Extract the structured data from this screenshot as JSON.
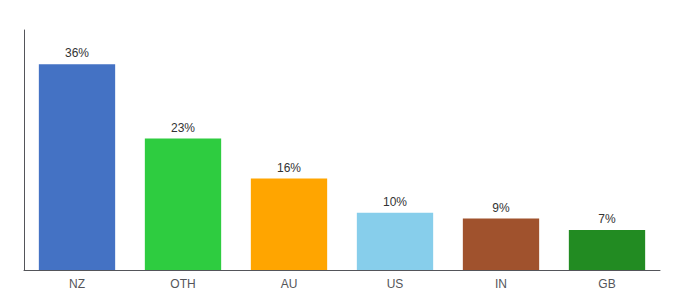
{
  "chart_data": {
    "type": "bar",
    "categories": [
      "NZ",
      "OTH",
      "AU",
      "US",
      "IN",
      "GB"
    ],
    "values": [
      36,
      23,
      16,
      10,
      9,
      7
    ],
    "value_labels": [
      "36%",
      "23%",
      "16%",
      "10%",
      "9%",
      "7%"
    ],
    "colors": [
      "#4472C4",
      "#2ECC40",
      "#FFA500",
      "#87CEEB",
      "#A0522D",
      "#228B22"
    ],
    "ylim": [
      0,
      42
    ],
    "data_labels": true,
    "tick_labels": "x",
    "grid": false
  }
}
